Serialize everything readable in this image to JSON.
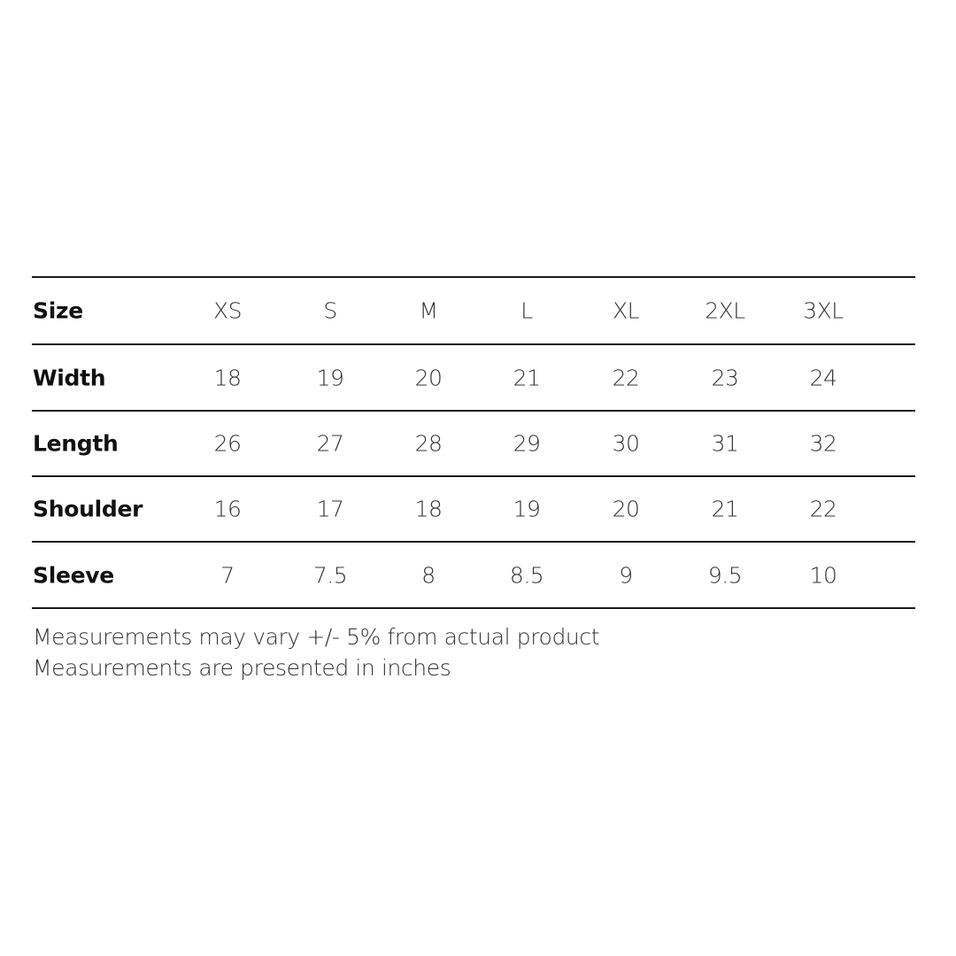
{
  "table": {
    "header": {
      "label": "Size",
      "values": [
        "XS",
        "S",
        "M",
        "L",
        "XL",
        "2XL",
        "3XL"
      ]
    },
    "rows": [
      {
        "label": "Width",
        "values": [
          "18",
          "19",
          "20",
          "21",
          "22",
          "23",
          "24"
        ]
      },
      {
        "label": "Length",
        "values": [
          "26",
          "27",
          "28",
          "29",
          "30",
          "31",
          "32"
        ]
      },
      {
        "label": "Shoulder",
        "values": [
          "16",
          "17",
          "18",
          "19",
          "20",
          "21",
          "22"
        ]
      },
      {
        "label": "Sleeve",
        "values": [
          "7",
          "7.5",
          "8",
          "8.5",
          "9",
          "9.5",
          "10"
        ]
      }
    ]
  },
  "notes": [
    "Measurements may vary +/- 5% from actual product",
    "Measurements are presented in inches"
  ]
}
